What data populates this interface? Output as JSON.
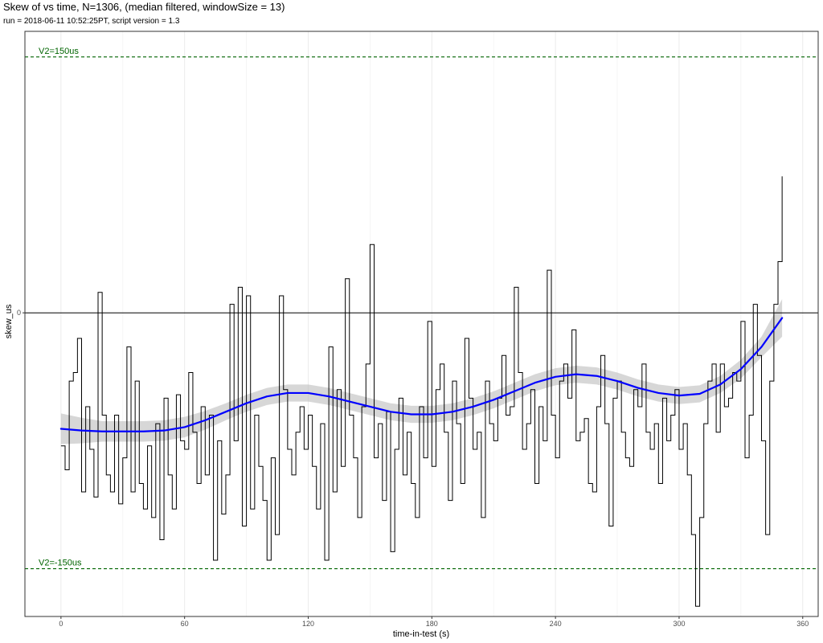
{
  "chart_data": {
    "type": "line",
    "title": "Skew of vs time, N=1306, (median filtered, windowSize = 13)",
    "subtitle": "run = 2018-06-11 10:52:25PT, script version = 1.3",
    "xlabel": "time-in-test (s)",
    "ylabel": "skew_us",
    "xlim": [
      -17.5,
      367.5
    ],
    "ylim": [
      -178,
      165
    ],
    "x_ticks": [
      0,
      60,
      120,
      180,
      240,
      300,
      360
    ],
    "y_ticks": [
      0
    ],
    "grid": true,
    "reference_lines": [
      {
        "label": "V2=150us",
        "y": 150,
        "color": "#006400",
        "style": "dashed"
      },
      {
        "label": "V2=-150us",
        "y": -150,
        "color": "#006400",
        "style": "dashed"
      },
      {
        "label": "",
        "y": 0,
        "color": "#000000",
        "style": "solid"
      }
    ],
    "series": [
      {
        "color": "#000000",
        "points": [
          [
            0,
            -78
          ],
          [
            2,
            -92
          ],
          [
            4,
            -40
          ],
          [
            6,
            -35
          ],
          [
            8,
            -15
          ],
          [
            10,
            -105
          ],
          [
            12,
            -55
          ],
          [
            14,
            -80
          ],
          [
            16,
            -108
          ],
          [
            18,
            12
          ],
          [
            20,
            -60
          ],
          [
            22,
            -95
          ],
          [
            24,
            -105
          ],
          [
            26,
            -60
          ],
          [
            28,
            -112
          ],
          [
            30,
            -85
          ],
          [
            32,
            -20
          ],
          [
            34,
            -105
          ],
          [
            36,
            -40
          ],
          [
            38,
            -100
          ],
          [
            40,
            -115
          ],
          [
            42,
            -78
          ],
          [
            44,
            -120
          ],
          [
            46,
            -65
          ],
          [
            48,
            -133
          ],
          [
            50,
            -50
          ],
          [
            52,
            -95
          ],
          [
            54,
            -115
          ],
          [
            56,
            -48
          ],
          [
            58,
            -75
          ],
          [
            60,
            -80
          ],
          [
            62,
            -35
          ],
          [
            64,
            -70
          ],
          [
            66,
            -100
          ],
          [
            68,
            -55
          ],
          [
            70,
            -95
          ],
          [
            72,
            -60
          ],
          [
            74,
            -145
          ],
          [
            76,
            -75
          ],
          [
            78,
            -118
          ],
          [
            80,
            -95
          ],
          [
            82,
            5
          ],
          [
            84,
            -75
          ],
          [
            86,
            15
          ],
          [
            88,
            -125
          ],
          [
            90,
            10
          ],
          [
            92,
            -115
          ],
          [
            94,
            -60
          ],
          [
            96,
            -90
          ],
          [
            98,
            -110
          ],
          [
            100,
            -145
          ],
          [
            102,
            -85
          ],
          [
            104,
            -130
          ],
          [
            106,
            10
          ],
          [
            108,
            -45
          ],
          [
            110,
            -80
          ],
          [
            112,
            -95
          ],
          [
            114,
            -70
          ],
          [
            116,
            -55
          ],
          [
            118,
            -80
          ],
          [
            120,
            -60
          ],
          [
            122,
            -90
          ],
          [
            124,
            -115
          ],
          [
            126,
            -65
          ],
          [
            128,
            -145
          ],
          [
            130,
            -20
          ],
          [
            132,
            -105
          ],
          [
            134,
            -45
          ],
          [
            136,
            -90
          ],
          [
            138,
            20
          ],
          [
            140,
            -60
          ],
          [
            142,
            -85
          ],
          [
            144,
            -120
          ],
          [
            146,
            -55
          ],
          [
            148,
            -30
          ],
          [
            150,
            40
          ],
          [
            152,
            -85
          ],
          [
            154,
            -65
          ],
          [
            156,
            -110
          ],
          [
            158,
            -58
          ],
          [
            160,
            -140
          ],
          [
            162,
            -80
          ],
          [
            164,
            -50
          ],
          [
            166,
            -95
          ],
          [
            168,
            -70
          ],
          [
            170,
            -100
          ],
          [
            172,
            -120
          ],
          [
            174,
            -55
          ],
          [
            176,
            -85
          ],
          [
            178,
            -5
          ],
          [
            180,
            -90
          ],
          [
            182,
            -45
          ],
          [
            184,
            -30
          ],
          [
            186,
            -70
          ],
          [
            188,
            -110
          ],
          [
            190,
            -40
          ],
          [
            192,
            -65
          ],
          [
            194,
            -100
          ],
          [
            196,
            -15
          ],
          [
            198,
            -50
          ],
          [
            200,
            -80
          ],
          [
            202,
            -70
          ],
          [
            204,
            -120
          ],
          [
            206,
            -40
          ],
          [
            208,
            -65
          ],
          [
            210,
            -75
          ],
          [
            212,
            -50
          ],
          [
            214,
            -25
          ],
          [
            216,
            -60
          ],
          [
            218,
            -55
          ],
          [
            220,
            15
          ],
          [
            222,
            -35
          ],
          [
            224,
            -80
          ],
          [
            226,
            -65
          ],
          [
            228,
            -45
          ],
          [
            230,
            -100
          ],
          [
            232,
            -55
          ],
          [
            234,
            -75
          ],
          [
            236,
            25
          ],
          [
            238,
            -60
          ],
          [
            240,
            -85
          ],
          [
            242,
            -40
          ],
          [
            244,
            -30
          ],
          [
            246,
            -50
          ],
          [
            248,
            -10
          ],
          [
            250,
            -75
          ],
          [
            252,
            -70
          ],
          [
            254,
            -62
          ],
          [
            256,
            -100
          ],
          [
            258,
            -105
          ],
          [
            260,
            -55
          ],
          [
            262,
            -25
          ],
          [
            264,
            -65
          ],
          [
            266,
            -125
          ],
          [
            268,
            -50
          ],
          [
            270,
            -40
          ],
          [
            272,
            -70
          ],
          [
            274,
            -85
          ],
          [
            276,
            -90
          ],
          [
            278,
            -45
          ],
          [
            280,
            -55
          ],
          [
            282,
            -30
          ],
          [
            284,
            -70
          ],
          [
            286,
            -80
          ],
          [
            288,
            -65
          ],
          [
            290,
            -100
          ],
          [
            292,
            -50
          ],
          [
            294,
            -75
          ],
          [
            296,
            -60
          ],
          [
            298,
            -45
          ],
          [
            300,
            -80
          ],
          [
            302,
            -65
          ],
          [
            304,
            -95
          ],
          [
            306,
            -130
          ],
          [
            308,
            -172
          ],
          [
            310,
            -120
          ],
          [
            312,
            -65
          ],
          [
            314,
            -40
          ],
          [
            316,
            -30
          ],
          [
            318,
            -70
          ],
          [
            320,
            -30
          ],
          [
            322,
            -55
          ],
          [
            324,
            -50
          ],
          [
            326,
            -35
          ],
          [
            328,
            -40
          ],
          [
            330,
            -5
          ],
          [
            332,
            -85
          ],
          [
            334,
            -60
          ],
          [
            336,
            5
          ],
          [
            338,
            -25
          ],
          [
            340,
            -75
          ],
          [
            342,
            -130
          ],
          [
            344,
            -40
          ],
          [
            346,
            5
          ],
          [
            348,
            30
          ],
          [
            350,
            80
          ]
        ]
      },
      {
        "color": "#0000ff",
        "points": [
          [
            0,
            -68
          ],
          [
            10,
            -69
          ],
          [
            20,
            -69.5
          ],
          [
            30,
            -69.5
          ],
          [
            40,
            -69.5
          ],
          [
            50,
            -69
          ],
          [
            60,
            -67
          ],
          [
            70,
            -63
          ],
          [
            80,
            -58
          ],
          [
            90,
            -53
          ],
          [
            100,
            -49
          ],
          [
            110,
            -47
          ],
          [
            120,
            -47
          ],
          [
            130,
            -49
          ],
          [
            140,
            -52
          ],
          [
            150,
            -55
          ],
          [
            160,
            -58
          ],
          [
            170,
            -59.5
          ],
          [
            180,
            -59.5
          ],
          [
            190,
            -58
          ],
          [
            200,
            -55
          ],
          [
            210,
            -51
          ],
          [
            220,
            -46
          ],
          [
            230,
            -41
          ],
          [
            240,
            -37.5
          ],
          [
            250,
            -36
          ],
          [
            260,
            -37
          ],
          [
            270,
            -40
          ],
          [
            280,
            -44
          ],
          [
            290,
            -47
          ],
          [
            300,
            -48.5
          ],
          [
            310,
            -47.5
          ],
          [
            320,
            -42
          ],
          [
            330,
            -33
          ],
          [
            340,
            -20
          ],
          [
            350,
            -3
          ]
        ],
        "ci_halfwidth": [
          [
            0,
            9
          ],
          [
            20,
            6
          ],
          [
            40,
            6
          ],
          [
            60,
            6
          ],
          [
            80,
            5
          ],
          [
            100,
            5
          ],
          [
            120,
            5
          ],
          [
            140,
            5
          ],
          [
            160,
            5
          ],
          [
            180,
            5
          ],
          [
            200,
            5
          ],
          [
            220,
            5
          ],
          [
            240,
            5
          ],
          [
            260,
            5
          ],
          [
            280,
            5
          ],
          [
            300,
            5
          ],
          [
            320,
            5
          ],
          [
            340,
            6
          ],
          [
            350,
            11
          ]
        ]
      }
    ]
  }
}
